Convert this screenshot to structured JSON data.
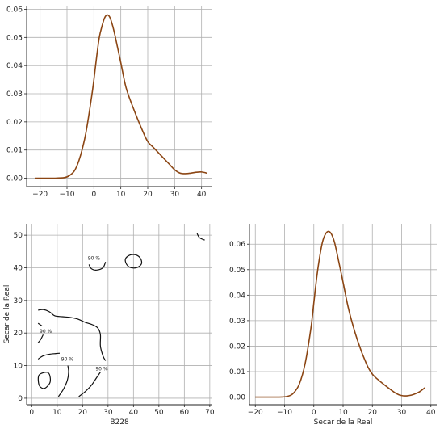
{
  "chart_data": [
    {
      "type": "line",
      "panel": "top-left",
      "xlim": [
        -25,
        44
      ],
      "ylim": [
        -0.003,
        0.061
      ],
      "xticks": [
        -20,
        -10,
        0,
        10,
        20,
        30,
        40
      ],
      "yticks": [
        0.0,
        0.01,
        0.02,
        0.03,
        0.04,
        0.05,
        0.06
      ],
      "ytick_labels": [
        "0.00",
        "0.01",
        "0.02",
        "0.03",
        "0.04",
        "0.05",
        "0.06"
      ],
      "xtick_labels": [
        "−20",
        "−10",
        "0",
        "10",
        "20",
        "30",
        "40"
      ],
      "xlabel": "",
      "ylabel": "",
      "grid": true,
      "color": "#8b4513",
      "series": [
        {
          "x": [
            -22,
            -15,
            -11,
            -9,
            -7,
            -5,
            -3,
            -1,
            0,
            1,
            2,
            3,
            4,
            5,
            6,
            7,
            8,
            10,
            12,
            15,
            18,
            20,
            22,
            25,
            28,
            30,
            32,
            34,
            36,
            38,
            40,
            42
          ],
          "y": [
            0.0,
            0.0,
            0.0002,
            0.001,
            0.003,
            0.008,
            0.016,
            0.028,
            0.035,
            0.043,
            0.05,
            0.054,
            0.057,
            0.058,
            0.057,
            0.054,
            0.05,
            0.041,
            0.032,
            0.024,
            0.017,
            0.013,
            0.011,
            0.008,
            0.005,
            0.003,
            0.0018,
            0.0016,
            0.0018,
            0.0021,
            0.0022,
            0.0018
          ]
        }
      ]
    },
    {
      "type": "contour",
      "panel": "bottom-left",
      "xlim": [
        -2,
        71
      ],
      "ylim": [
        -2,
        53.5
      ],
      "xticks": [
        0,
        10,
        20,
        30,
        40,
        50,
        60,
        70
      ],
      "yticks": [
        0,
        10,
        20,
        30,
        40,
        50
      ],
      "xtick_labels": [
        "0",
        "10",
        "20",
        "30",
        "40",
        "50",
        "60",
        "70"
      ],
      "ytick_labels": [
        "0",
        "10",
        "20",
        "30",
        "40",
        "50"
      ],
      "xlabel": "B228",
      "ylabel": "Secar de la Real",
      "grid": true,
      "level_labels": [
        {
          "text": "90 %",
          "x": 24.5,
          "y": 42.5
        },
        {
          "text": "90 %",
          "x": 5.5,
          "y": 20
        },
        {
          "text": "90 %",
          "x": 14,
          "y": 11.5
        },
        {
          "text": "90 %",
          "x": 27.5,
          "y": 8.5
        }
      ],
      "contours": [
        {
          "points": [
            [
              2.5,
              27
            ],
            [
              4.5,
              27.2
            ],
            [
              7,
              26.5
            ],
            [
              9,
              25.3
            ],
            [
              12,
              25
            ],
            [
              15,
              24.8
            ],
            [
              18,
              24.3
            ],
            [
              21,
              23.3
            ],
            [
              24,
              22.5
            ],
            [
              26,
              21.5
            ],
            [
              27,
              19.5
            ],
            [
              27,
              16
            ],
            [
              28,
              13
            ],
            [
              29,
              11.5
            ]
          ],
          "closed": false
        },
        {
          "points": [
            [
              2.5,
              23
            ],
            [
              4,
              22.2
            ]
          ],
          "closed": false
        },
        {
          "points": [
            [
              2.5,
              17
            ],
            [
              3.5,
              18
            ],
            [
              4.5,
              19.5
            ]
          ],
          "closed": false
        },
        {
          "points": [
            [
              2.5,
              12
            ],
            [
              4.5,
              13
            ],
            [
              7,
              13.5
            ],
            [
              9.5,
              13.7
            ],
            [
              11,
              13.8
            ]
          ],
          "closed": false
        },
        {
          "points": [
            [
              10.5,
              0.5
            ],
            [
              12.5,
              2.8
            ],
            [
              14,
              5.5
            ],
            [
              14.5,
              8
            ],
            [
              14.2,
              10
            ]
          ],
          "closed": false
        },
        {
          "points": [
            [
              18.5,
              0.5
            ],
            [
              21,
              2
            ],
            [
              23.5,
              4
            ],
            [
              25.5,
              6.3
            ],
            [
              27,
              8
            ]
          ],
          "closed": false
        },
        {
          "points": [
            [
              2.8,
              7
            ],
            [
              4.5,
              7.8
            ],
            [
              6.5,
              7.8
            ],
            [
              7.3,
              6.2
            ],
            [
              7,
              4.5
            ],
            [
              5,
              3
            ],
            [
              3.2,
              3.6
            ],
            [
              2.6,
              5.2
            ]
          ],
          "closed": true
        },
        {
          "points": [
            [
              22.5,
              41
            ],
            [
              23.5,
              39.7
            ],
            [
              25.5,
              39.3
            ],
            [
              28,
              40
            ],
            [
              29,
              41.8
            ]
          ],
          "closed": false
        },
        {
          "points": [
            [
              37,
              43
            ],
            [
              39,
              44
            ],
            [
              41.5,
              43.8
            ],
            [
              43,
              42.5
            ],
            [
              43,
              41
            ],
            [
              41,
              40
            ],
            [
              38.5,
              40.2
            ],
            [
              37,
              41.5
            ]
          ],
          "closed": true
        },
        {
          "points": [
            [
              65,
              50.5
            ],
            [
              66,
              49.2
            ],
            [
              68,
              48.5
            ]
          ],
          "closed": false
        }
      ]
    },
    {
      "type": "line",
      "panel": "bottom-right",
      "xlim": [
        -22,
        42
      ],
      "ylim": [
        -0.003,
        0.068
      ],
      "xticks": [
        -20,
        -10,
        0,
        10,
        20,
        30,
        40
      ],
      "yticks": [
        0.0,
        0.01,
        0.02,
        0.03,
        0.04,
        0.05,
        0.06
      ],
      "xtick_labels": [
        "−20",
        "−10",
        "0",
        "10",
        "20",
        "30",
        "40"
      ],
      "ytick_labels": [
        "0.00",
        "0.01",
        "0.02",
        "0.03",
        "0.04",
        "0.05",
        "0.06"
      ],
      "xlabel": "Secar de la Real",
      "ylabel": "",
      "grid": true,
      "color": "#8b4513",
      "series": [
        {
          "x": [
            -20,
            -12,
            -9,
            -7,
            -5,
            -3,
            -1,
            0,
            1,
            2,
            3,
            4,
            5,
            6,
            7,
            8,
            10,
            12,
            15,
            18,
            20,
            22,
            25,
            28,
            30,
            32,
            34,
            36,
            38
          ],
          "y": [
            0.0,
            0.0,
            0.0003,
            0.0015,
            0.005,
            0.013,
            0.027,
            0.037,
            0.047,
            0.055,
            0.061,
            0.064,
            0.065,
            0.064,
            0.061,
            0.056,
            0.045,
            0.034,
            0.022,
            0.013,
            0.009,
            0.0068,
            0.004,
            0.0015,
            0.0006,
            0.0005,
            0.001,
            0.002,
            0.0037
          ]
        }
      ]
    }
  ]
}
